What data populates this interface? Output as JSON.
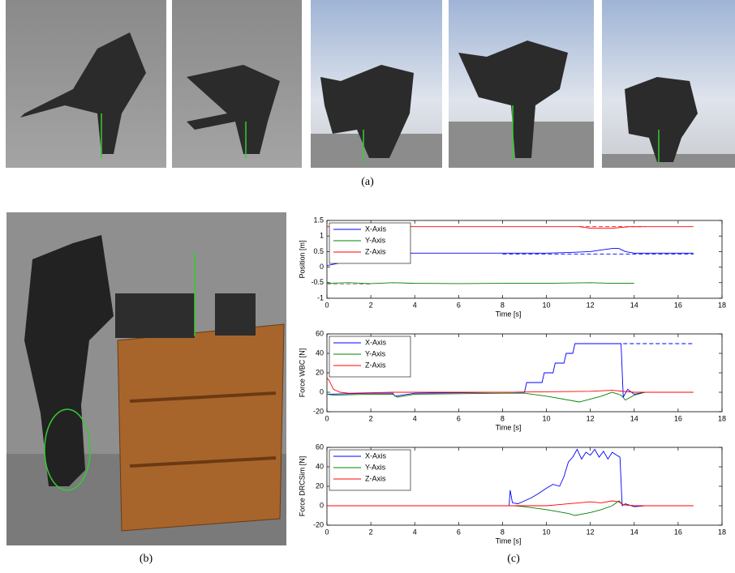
{
  "captions": {
    "a": "(a)",
    "b": "(b)",
    "c": "(c)"
  },
  "chart_data": [
    {
      "type": "line",
      "ylabel": "Position [m]",
      "xlabel": "Time [s]",
      "xlim": [
        0,
        18
      ],
      "xticks": [
        0,
        2,
        4,
        6,
        8,
        10,
        12,
        14,
        16,
        18
      ],
      "ylim": [
        -1,
        1.5
      ],
      "yticks": [
        -1,
        -0.5,
        0,
        0.5,
        1,
        1.5
      ],
      "legend": "upper left",
      "series": [
        {
          "name": "X-Axis",
          "color": "#0000ff",
          "x": [
            0,
            0.5,
            1,
            1.5,
            2,
            2.5,
            4,
            6,
            8,
            10,
            11,
            12,
            12.5,
            13,
            13.3,
            13.6,
            14,
            15,
            16.7
          ],
          "values": [
            0.05,
            0.12,
            0.2,
            0.3,
            0.4,
            0.45,
            0.45,
            0.45,
            0.45,
            0.45,
            0.47,
            0.5,
            0.55,
            0.6,
            0.6,
            0.5,
            0.45,
            0.45,
            0.45
          ]
        },
        {
          "name": "Y-Axis",
          "color": "#008000",
          "x": [
            0,
            1,
            2,
            3,
            4,
            6,
            8,
            10,
            12,
            13,
            14
          ],
          "values": [
            -0.52,
            -0.5,
            -0.53,
            -0.5,
            -0.52,
            -0.53,
            -0.52,
            -0.52,
            -0.5,
            -0.52,
            -0.52
          ]
        },
        {
          "name": "Z-Axis",
          "color": "#ff0000",
          "x": [
            0,
            4,
            8,
            11.5,
            12,
            13,
            13.8,
            14.5,
            16.7
          ],
          "values": [
            1.3,
            1.3,
            1.3,
            1.3,
            1.25,
            1.25,
            1.3,
            1.3,
            1.3
          ]
        },
        {
          "color": "#0000ff",
          "dashed": true,
          "x": [
            8,
            16.7
          ],
          "values": [
            0.42,
            0.42
          ]
        },
        {
          "color": "#888888",
          "dashed": true,
          "x": [
            0,
            2
          ],
          "values": [
            -0.55,
            -0.55
          ]
        },
        {
          "color": "#ff0000",
          "dashed": true,
          "x": [
            11.5,
            14.5
          ],
          "values": [
            1.3,
            1.3
          ]
        }
      ]
    },
    {
      "type": "line",
      "ylabel": "Force WBC [N]",
      "xlabel": "Time [s]",
      "xlim": [
        0,
        18
      ],
      "xticks": [
        0,
        2,
        4,
        6,
        8,
        10,
        12,
        14,
        16,
        18
      ],
      "ylim": [
        -20,
        60
      ],
      "yticks": [
        -20,
        0,
        20,
        40,
        60
      ],
      "legend": "upper left",
      "series": [
        {
          "name": "X-Axis",
          "color": "#0000ff",
          "x": [
            0,
            2,
            3,
            3.1,
            4,
            8,
            9,
            9.1,
            9.8,
            9.9,
            10.3,
            10.4,
            10.8,
            10.9,
            11.2,
            11.3,
            13.4,
            13.5,
            13.7,
            14,
            14.5,
            14.7
          ],
          "values": [
            -2,
            -1,
            -1,
            -4,
            -1,
            0,
            0,
            10,
            10,
            20,
            20,
            30,
            30,
            40,
            40,
            50,
            50,
            -5,
            3,
            -2,
            0,
            0
          ]
        },
        {
          "name": "Y-Axis",
          "color": "#008000",
          "x": [
            0,
            0.3,
            2,
            3,
            3.2,
            4,
            8,
            9,
            10,
            11.5,
            12.5,
            13,
            13.4,
            13.6,
            14,
            14.5
          ],
          "values": [
            -2,
            -3,
            -2,
            -2,
            -5,
            -2,
            -1,
            -1,
            -4,
            -10,
            -4,
            0,
            -3,
            -8,
            -3,
            0
          ]
        },
        {
          "name": "Z-Axis",
          "color": "#ff0000",
          "x": [
            0,
            0.1,
            0.3,
            0.6,
            1,
            3,
            8,
            12,
            13,
            14,
            16.7
          ],
          "values": [
            15,
            12,
            3,
            0,
            -1,
            0,
            0,
            1,
            2,
            0,
            0
          ]
        },
        {
          "color": "#0000ff",
          "dashed": true,
          "x": [
            13.5,
            16.7
          ],
          "values": [
            50,
            50
          ]
        }
      ]
    },
    {
      "type": "line",
      "ylabel": "Force DRCSim [N]",
      "xlabel": "Time [s]",
      "xlim": [
        0,
        18
      ],
      "xticks": [
        0,
        2,
        4,
        6,
        8,
        10,
        12,
        14,
        16,
        18
      ],
      "ylim": [
        -20,
        60
      ],
      "yticks": [
        -20,
        0,
        20,
        40,
        60
      ],
      "legend": "upper left",
      "series": [
        {
          "name": "X-Axis",
          "color": "#0000ff",
          "x": [
            0,
            4,
            8.3,
            8.35,
            8.45,
            8.7,
            9,
            9.3,
            9.6,
            10,
            10.3,
            10.6,
            10.8,
            11,
            11.2,
            11.4,
            11.6,
            11.8,
            12,
            12.2,
            12.4,
            12.6,
            12.8,
            13,
            13.2,
            13.35,
            13.45,
            13.6,
            14,
            14.5
          ],
          "values": [
            0,
            0,
            0,
            16,
            3,
            2,
            5,
            8,
            12,
            18,
            22,
            20,
            30,
            45,
            50,
            58,
            48,
            55,
            52,
            58,
            50,
            56,
            48,
            55,
            52,
            50,
            0,
            2,
            -1,
            0
          ]
        },
        {
          "name": "Y-Axis",
          "color": "#008000",
          "x": [
            0,
            8.5,
            9,
            10,
            11,
            11.3,
            12,
            12.5,
            13,
            13.3,
            13.5,
            14
          ],
          "values": [
            0,
            0,
            -1,
            -4,
            -8,
            -10,
            -7,
            -4,
            0,
            5,
            1,
            0
          ]
        },
        {
          "name": "Z-Axis",
          "color": "#ff0000",
          "x": [
            0,
            8,
            10,
            10.5,
            11,
            11.5,
            12,
            12.5,
            13,
            13.3,
            13.5,
            14,
            16.7
          ],
          "values": [
            0,
            0,
            0,
            1,
            2,
            3,
            4,
            3,
            5,
            4,
            1,
            0,
            0
          ]
        }
      ]
    }
  ]
}
